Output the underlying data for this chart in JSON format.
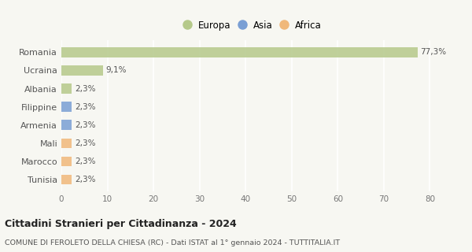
{
  "categories": [
    "Tunisia",
    "Marocco",
    "Mali",
    "Armenia",
    "Filippine",
    "Albania",
    "Ucraina",
    "Romania"
  ],
  "values": [
    2.3,
    2.3,
    2.3,
    2.3,
    2.3,
    2.3,
    9.1,
    77.3
  ],
  "labels": [
    "2,3%",
    "2,3%",
    "2,3%",
    "2,3%",
    "2,3%",
    "2,3%",
    "9,1%",
    "77,3%"
  ],
  "colors": [
    "#f0b87a",
    "#f0b87a",
    "#f0b87a",
    "#7a9fd4",
    "#7a9fd4",
    "#b5c98a",
    "#b5c98a",
    "#b5c98a"
  ],
  "legend_labels": [
    "Europa",
    "Asia",
    "Africa"
  ],
  "legend_colors": [
    "#b5c98a",
    "#7a9fd4",
    "#f0b87a"
  ],
  "title": "Cittadini Stranieri per Cittadinanza - 2024",
  "subtitle": "COMUNE DI FEROLETO DELLA CHIESA (RC) - Dati ISTAT al 1° gennaio 2024 - TUTTITALIA.IT",
  "xlim": [
    0,
    83
  ],
  "xticks": [
    0,
    10,
    20,
    30,
    40,
    50,
    60,
    70,
    80
  ],
  "bg_color": "#f7f7f2",
  "bar_height": 0.55,
  "grid_color": "#ffffff"
}
